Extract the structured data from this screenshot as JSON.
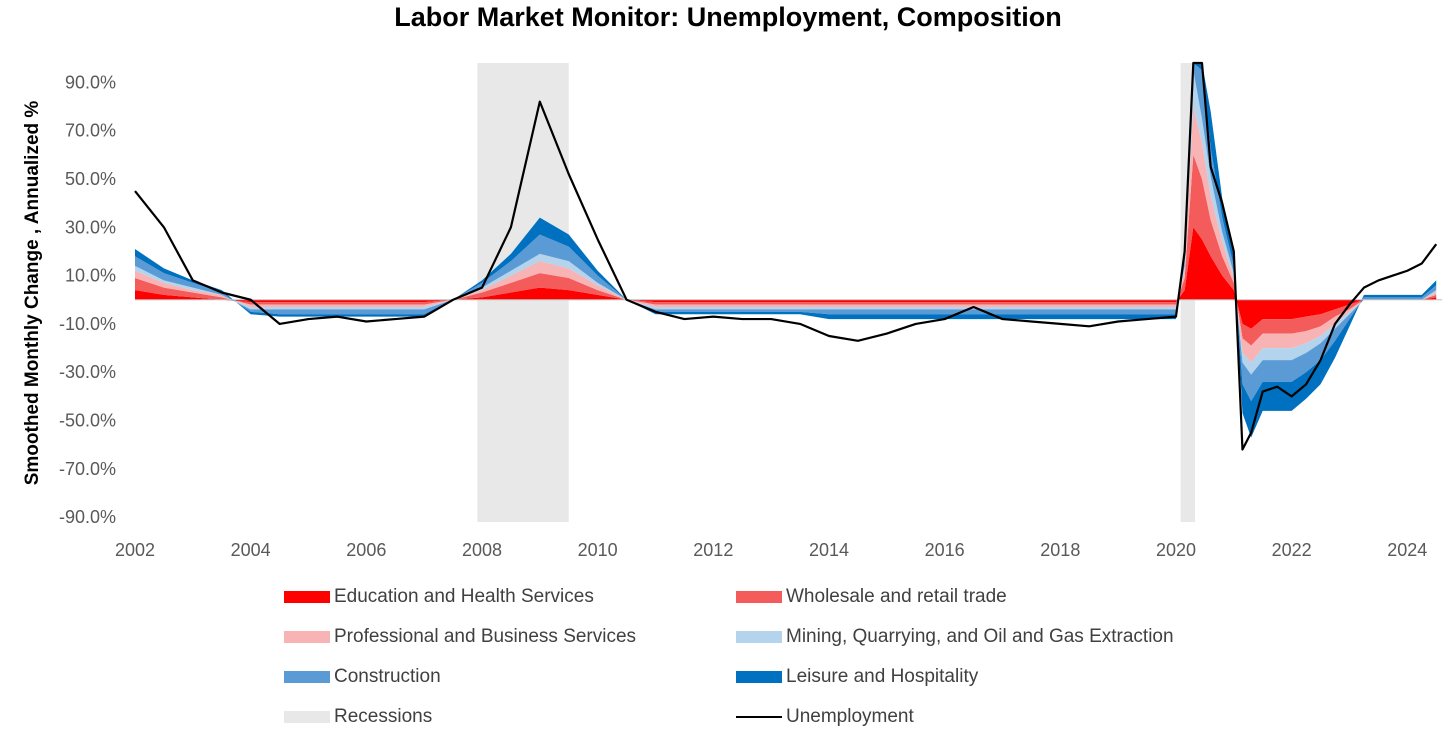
{
  "chart_data": {
    "type": "area",
    "title": "Labor Market Monitor: Unemployment, Composition",
    "ylabel": "Smoothed Monthly Change , Annualized  %",
    "xlabel": "",
    "x_range": [
      2002.0,
      2024.6
    ],
    "ylim": [
      -90,
      100
    ],
    "y_ticks": [
      90,
      70,
      50,
      30,
      10,
      -10,
      -30,
      -50,
      -70,
      -90
    ],
    "y_tick_labels": [
      "90.0%",
      "70.0%",
      "50.0%",
      "30.0%",
      "10.0%",
      "-10.0%",
      "-30.0%",
      "-50.0%",
      "-70.0%",
      "-90.0%"
    ],
    "x_ticks": [
      2002,
      2004,
      2006,
      2008,
      2010,
      2012,
      2014,
      2016,
      2018,
      2020,
      2022,
      2024
    ],
    "x_tick_labels": [
      "2002",
      "2004",
      "2006",
      "2008",
      "2010",
      "2012",
      "2014",
      "2016",
      "2018",
      "2020",
      "2022",
      "2024"
    ],
    "recessions": [
      [
        2007.92,
        2009.5
      ],
      [
        2020.08,
        2020.33
      ]
    ],
    "x": [
      2002.0,
      2002.5,
      2003.0,
      2003.5,
      2004.0,
      2004.5,
      2005.0,
      2005.5,
      2006.0,
      2006.5,
      2007.0,
      2007.5,
      2008.0,
      2008.5,
      2009.0,
      2009.5,
      2010.0,
      2010.5,
      2011.0,
      2011.5,
      2012.0,
      2012.5,
      2013.0,
      2013.5,
      2014.0,
      2014.5,
      2015.0,
      2015.5,
      2016.0,
      2016.5,
      2017.0,
      2017.5,
      2018.0,
      2018.5,
      2019.0,
      2019.5,
      2020.0,
      2020.15,
      2020.3,
      2020.45,
      2020.6,
      2020.8,
      2021.0,
      2021.15,
      2021.3,
      2021.5,
      2021.75,
      2022.0,
      2022.25,
      2022.5,
      2022.75,
      2023.0,
      2023.25,
      2023.5,
      2023.75,
      2024.0,
      2024.25,
      2024.5
    ],
    "series": [
      {
        "name": "Education and Health Services",
        "color": "#ff0000",
        "values": [
          4,
          2,
          1,
          0,
          -1,
          -1,
          -1,
          -1,
          -1,
          -1,
          -1,
          0,
          1,
          3,
          5,
          4,
          2,
          0,
          -1,
          -1,
          -1,
          -1,
          -1,
          -1,
          -1,
          -1,
          -1,
          -1,
          -1,
          -1,
          -1,
          -1,
          -1,
          -1,
          -1,
          -1,
          -1,
          4,
          30,
          25,
          18,
          10,
          4,
          -10,
          -12,
          -8,
          -8,
          -8,
          -7,
          -6,
          -4,
          -2,
          0,
          0,
          0,
          0,
          0,
          1
        ]
      },
      {
        "name": "Wholesale and retail trade",
        "color": "#f45b5b",
        "values": [
          5,
          3,
          2,
          1,
          -1,
          -1,
          -1,
          -1,
          -1,
          -1,
          -1,
          0,
          2,
          4,
          6,
          5,
          2,
          0,
          -1,
          -1,
          -1,
          -1,
          -1,
          -1,
          -1,
          -1,
          -1,
          -1,
          -1,
          -1,
          -1,
          -1,
          -1,
          -1,
          -1,
          -1,
          -1,
          5,
          30,
          25,
          15,
          8,
          3,
          -6,
          -7,
          -6,
          -6,
          -6,
          -6,
          -5,
          -3,
          -2,
          0,
          0,
          0,
          0,
          0,
          1
        ]
      },
      {
        "name": "Professional and Business Services",
        "color": "#f8b4b4",
        "values": [
          3,
          2,
          1,
          1,
          -1,
          -1,
          -1,
          -1,
          -1,
          -1,
          -1,
          0,
          1,
          3,
          5,
          4,
          2,
          0,
          -1,
          -1,
          -1,
          -1,
          -1,
          -1,
          -1,
          -1,
          -1,
          -1,
          -1,
          -1,
          -1,
          -1,
          -1,
          -1,
          -1,
          -1,
          -1,
          3,
          20,
          15,
          10,
          6,
          2,
          -6,
          -7,
          -6,
          -6,
          -6,
          -5,
          -4,
          -3,
          -1,
          0,
          0,
          0,
          0,
          0,
          1
        ]
      },
      {
        "name": "Mining, Quarrying, and Oil and Gas Extraction",
        "color": "#b4d4ee",
        "values": [
          2,
          1,
          1,
          0,
          -1,
          -1,
          -1,
          -1,
          -1,
          -1,
          -1,
          0,
          1,
          2,
          3,
          3,
          1,
          0,
          -1,
          -1,
          -1,
          -1,
          -1,
          -1,
          -1,
          -1,
          -1,
          -1,
          -1,
          -1,
          -1,
          -1,
          -1,
          -1,
          -1,
          -1,
          -1,
          2,
          15,
          10,
          8,
          4,
          2,
          -4,
          -5,
          -5,
          -5,
          -5,
          -4,
          -3,
          -2,
          -1,
          0,
          0,
          0,
          0,
          0,
          1
        ]
      },
      {
        "name": "Construction",
        "color": "#5b9bd5",
        "values": [
          4,
          3,
          2,
          1,
          -1,
          -2,
          -2,
          -2,
          -2,
          -2,
          -2,
          0,
          2,
          4,
          8,
          6,
          3,
          0,
          -1,
          -1,
          -1,
          -1,
          -1,
          -1,
          -2,
          -2,
          -2,
          -2,
          -2,
          -2,
          -2,
          -2,
          -2,
          -2,
          -2,
          -2,
          -2,
          3,
          20,
          20,
          12,
          6,
          3,
          -9,
          -11,
          -9,
          -9,
          -9,
          -8,
          -7,
          -5,
          -2,
          1,
          1,
          1,
          1,
          1,
          2
        ]
      },
      {
        "name": "Leisure and Hospitality",
        "color": "#0070c0",
        "values": [
          3,
          2,
          1,
          1,
          -1,
          -1,
          -1,
          -1,
          -1,
          -1,
          -1,
          0,
          1,
          3,
          7,
          5,
          2,
          0,
          -1,
          -1,
          -1,
          -1,
          -1,
          -1,
          -2,
          -2,
          -2,
          -2,
          -2,
          -2,
          -2,
          -2,
          -2,
          -2,
          -2,
          -2,
          -2,
          3,
          25,
          30,
          15,
          8,
          4,
          -12,
          -15,
          -12,
          -12,
          -12,
          -11,
          -10,
          -7,
          -3,
          1,
          1,
          1,
          1,
          1,
          2
        ]
      },
      {
        "name": "Unemployment",
        "color": "#000000",
        "values": [
          45,
          30,
          8,
          3,
          0,
          -10,
          -8,
          -7,
          -9,
          -8,
          -7,
          0,
          5,
          30,
          82,
          52,
          25,
          0,
          -5,
          -8,
          -7,
          -8,
          -8,
          -10,
          -15,
          -17,
          -14,
          -10,
          -8,
          -3,
          -8,
          -9,
          -10,
          -11,
          -9,
          -8,
          -7,
          20,
          100,
          100,
          55,
          40,
          20,
          -62,
          -55,
          -38,
          -36,
          -40,
          -35,
          -25,
          -10,
          -2,
          5,
          8,
          10,
          12,
          15,
          23
        ]
      }
    ]
  },
  "legend": {
    "items": [
      {
        "label": "Education and Health Services",
        "color": "#ff0000",
        "kind": "swatch"
      },
      {
        "label": "Wholesale and retail trade",
        "color": "#f45b5b",
        "kind": "swatch"
      },
      {
        "label": "Professional and Business Services",
        "color": "#f8b4b4",
        "kind": "swatch"
      },
      {
        "label": "Mining, Quarrying, and Oil and Gas Extraction",
        "color": "#b4d4ee",
        "kind": "swatch"
      },
      {
        "label": "Construction",
        "color": "#5b9bd5",
        "kind": "swatch"
      },
      {
        "label": "Leisure and Hospitality",
        "color": "#0070c0",
        "kind": "swatch"
      },
      {
        "label": "Recessions",
        "color": "#e8e8e8",
        "kind": "swatch"
      },
      {
        "label": "Unemployment",
        "color": "#000000",
        "kind": "line"
      }
    ]
  }
}
